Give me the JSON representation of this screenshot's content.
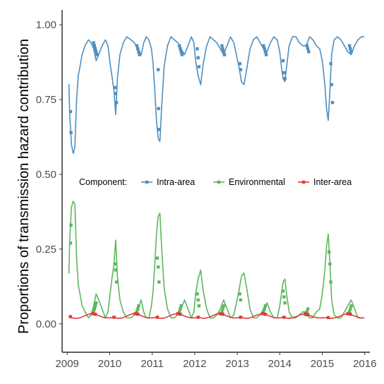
{
  "chart_data": {
    "type": "line",
    "title": "",
    "xlabel": "",
    "ylabel": "Proportions of transmission hazard contribution",
    "xlim": [
      2008.88,
      2016.12
    ],
    "ylim": [
      -0.095,
      1.05
    ],
    "x_ticks": [
      2009,
      2010,
      2011,
      2012,
      2013,
      2014,
      2015,
      2016
    ],
    "x_tick_labels": [
      "2009",
      "2010",
      "2011",
      "2012",
      "2013",
      "2014",
      "2015",
      "2016"
    ],
    "y_ticks": [
      0,
      0.25,
      0.5,
      0.75,
      1.0
    ],
    "y_tick_labels": [
      "0.00",
      "0.25",
      "0.50",
      "0.75",
      "1.00"
    ],
    "grid": false,
    "legend": {
      "title": "Component:",
      "placement": "inside-middle"
    },
    "series": [
      {
        "name": "Intra-area",
        "color": "#4f8fc0",
        "x": [
          2009.04,
          2009.06,
          2009.1,
          2009.14,
          2009.18,
          2009.22,
          2009.26,
          2009.3,
          2009.35,
          2009.42,
          2009.5,
          2009.56,
          2009.62,
          2009.68,
          2009.74,
          2009.82,
          2009.9,
          2009.96,
          2010.0,
          2010.05,
          2010.1,
          2010.14,
          2010.18,
          2010.24,
          2010.32,
          2010.4,
          2010.5,
          2010.58,
          2010.66,
          2010.74,
          2010.8,
          2010.86,
          2010.92,
          2010.98,
          2011.02,
          2011.06,
          2011.1,
          2011.14,
          2011.18,
          2011.22,
          2011.28,
          2011.36,
          2011.44,
          2011.52,
          2011.6,
          2011.68,
          2011.76,
          2011.84,
          2011.92,
          2011.98,
          2012.02,
          2012.08,
          2012.14,
          2012.2,
          2012.28,
          2012.36,
          2012.44,
          2012.52,
          2012.6,
          2012.68,
          2012.76,
          2012.84,
          2012.92,
          2012.98,
          2013.04,
          2013.1,
          2013.16,
          2013.22,
          2013.3,
          2013.38,
          2013.46,
          2013.54,
          2013.62,
          2013.7,
          2013.78,
          2013.86,
          2013.94,
          2014.0,
          2014.04,
          2014.08,
          2014.12,
          2014.16,
          2014.22,
          2014.3,
          2014.38,
          2014.46,
          2014.54,
          2014.62,
          2014.7,
          2014.78,
          2014.86,
          2014.94,
          2015.0,
          2015.06,
          2015.1,
          2015.14,
          2015.18,
          2015.22,
          2015.28,
          2015.36,
          2015.44,
          2015.52,
          2015.6,
          2015.68,
          2015.76,
          2015.84,
          2015.92,
          2015.98
        ],
        "y": [
          0.8,
          0.7,
          0.6,
          0.57,
          0.59,
          0.75,
          0.83,
          0.86,
          0.9,
          0.93,
          0.95,
          0.94,
          0.92,
          0.88,
          0.9,
          0.93,
          0.95,
          0.93,
          0.88,
          0.83,
          0.78,
          0.7,
          0.82,
          0.9,
          0.94,
          0.96,
          0.95,
          0.94,
          0.92,
          0.9,
          0.94,
          0.96,
          0.95,
          0.92,
          0.87,
          0.78,
          0.68,
          0.62,
          0.61,
          0.72,
          0.86,
          0.93,
          0.96,
          0.95,
          0.94,
          0.92,
          0.9,
          0.93,
          0.96,
          0.94,
          0.88,
          0.83,
          0.8,
          0.87,
          0.93,
          0.96,
          0.95,
          0.94,
          0.92,
          0.9,
          0.93,
          0.96,
          0.94,
          0.9,
          0.86,
          0.81,
          0.8,
          0.85,
          0.92,
          0.95,
          0.96,
          0.94,
          0.92,
          0.91,
          0.94,
          0.96,
          0.95,
          0.91,
          0.86,
          0.82,
          0.81,
          0.86,
          0.93,
          0.96,
          0.96,
          0.94,
          0.93,
          0.93,
          0.96,
          0.95,
          0.93,
          0.92,
          0.88,
          0.8,
          0.72,
          0.68,
          0.78,
          0.9,
          0.95,
          0.96,
          0.95,
          0.93,
          0.91,
          0.9,
          0.93,
          0.95,
          0.96,
          0.96
        ],
        "markers_x": [
          2009.08,
          2009.09,
          2009.62,
          2009.64,
          2009.66,
          2009.68,
          2009.7,
          2010.12,
          2010.14,
          2010.16,
          2010.64,
          2010.66,
          2010.68,
          2010.7,
          2011.14,
          2011.15,
          2011.16,
          2011.64,
          2011.66,
          2011.68,
          2011.7,
          2012.06,
          2012.08,
          2012.1,
          2012.64,
          2012.66,
          2012.68,
          2012.7,
          2013.06,
          2013.08,
          2013.62,
          2013.64,
          2013.66,
          2013.68,
          2014.08,
          2014.1,
          2014.12,
          2014.64,
          2014.66,
          2014.68,
          2015.2,
          2015.22,
          2015.24,
          2015.64,
          2015.66,
          2015.68
        ],
        "markers_y": [
          0.71,
          0.64,
          0.94,
          0.93,
          0.92,
          0.91,
          0.9,
          0.79,
          0.77,
          0.74,
          0.93,
          0.92,
          0.91,
          0.9,
          0.85,
          0.72,
          0.65,
          0.93,
          0.92,
          0.91,
          0.9,
          0.92,
          0.89,
          0.86,
          0.93,
          0.92,
          0.91,
          0.9,
          0.87,
          0.85,
          0.93,
          0.92,
          0.91,
          0.9,
          0.88,
          0.84,
          0.82,
          0.93,
          0.92,
          0.91,
          0.87,
          0.8,
          0.74,
          0.93,
          0.92,
          0.91
        ]
      },
      {
        "name": "Environmental",
        "color": "#5cb85c",
        "x": [
          2009.04,
          2009.06,
          2009.1,
          2009.14,
          2009.18,
          2009.22,
          2009.26,
          2009.3,
          2009.35,
          2009.42,
          2009.5,
          2009.56,
          2009.62,
          2009.68,
          2009.74,
          2009.82,
          2009.9,
          2009.96,
          2010.0,
          2010.05,
          2010.1,
          2010.14,
          2010.18,
          2010.24,
          2010.32,
          2010.4,
          2010.5,
          2010.58,
          2010.66,
          2010.74,
          2010.8,
          2010.86,
          2010.92,
          2010.98,
          2011.02,
          2011.06,
          2011.1,
          2011.14,
          2011.18,
          2011.22,
          2011.28,
          2011.36,
          2011.44,
          2011.52,
          2011.6,
          2011.68,
          2011.76,
          2011.84,
          2011.92,
          2011.98,
          2012.02,
          2012.08,
          2012.14,
          2012.2,
          2012.28,
          2012.36,
          2012.44,
          2012.52,
          2012.6,
          2012.68,
          2012.76,
          2012.84,
          2012.92,
          2012.98,
          2013.04,
          2013.1,
          2013.16,
          2013.22,
          2013.3,
          2013.38,
          2013.46,
          2013.54,
          2013.62,
          2013.7,
          2013.78,
          2013.86,
          2013.94,
          2014.0,
          2014.04,
          2014.08,
          2014.12,
          2014.16,
          2014.22,
          2014.3,
          2014.38,
          2014.46,
          2014.54,
          2014.62,
          2014.7,
          2014.78,
          2014.86,
          2014.94,
          2015.0,
          2015.06,
          2015.1,
          2015.14,
          2015.18,
          2015.22,
          2015.28,
          2015.36,
          2015.44,
          2015.52,
          2015.6,
          2015.68,
          2015.76,
          2015.84,
          2015.92,
          2015.98
        ],
        "y": [
          0.17,
          0.28,
          0.39,
          0.41,
          0.4,
          0.22,
          0.13,
          0.1,
          0.06,
          0.04,
          0.02,
          0.03,
          0.06,
          0.1,
          0.08,
          0.05,
          0.02,
          0.04,
          0.09,
          0.15,
          0.2,
          0.28,
          0.16,
          0.08,
          0.04,
          0.02,
          0.02,
          0.03,
          0.05,
          0.08,
          0.04,
          0.02,
          0.02,
          0.06,
          0.11,
          0.2,
          0.3,
          0.36,
          0.37,
          0.26,
          0.12,
          0.05,
          0.02,
          0.02,
          0.03,
          0.05,
          0.08,
          0.05,
          0.02,
          0.04,
          0.1,
          0.15,
          0.18,
          0.11,
          0.05,
          0.02,
          0.02,
          0.03,
          0.05,
          0.08,
          0.05,
          0.02,
          0.03,
          0.07,
          0.11,
          0.16,
          0.17,
          0.12,
          0.05,
          0.02,
          0.02,
          0.03,
          0.05,
          0.07,
          0.04,
          0.02,
          0.02,
          0.06,
          0.1,
          0.14,
          0.15,
          0.1,
          0.04,
          0.02,
          0.02,
          0.03,
          0.04,
          0.04,
          0.02,
          0.02,
          0.04,
          0.05,
          0.1,
          0.18,
          0.26,
          0.3,
          0.2,
          0.08,
          0.03,
          0.02,
          0.02,
          0.04,
          0.06,
          0.08,
          0.05,
          0.02,
          0.02,
          0.02
        ],
        "markers_x": [
          2009.08,
          2009.09,
          2009.62,
          2009.64,
          2009.66,
          2009.68,
          2010.12,
          2010.14,
          2010.16,
          2010.64,
          2010.66,
          2010.68,
          2011.12,
          2011.14,
          2011.16,
          2011.64,
          2011.66,
          2011.68,
          2012.06,
          2012.08,
          2012.1,
          2012.64,
          2012.66,
          2012.68,
          2013.06,
          2013.08,
          2013.62,
          2013.64,
          2013.66,
          2014.08,
          2014.1,
          2014.12,
          2014.62,
          2014.64,
          2014.66,
          2015.16,
          2015.18,
          2015.2,
          2015.64,
          2015.66,
          2015.68
        ],
        "markers_y": [
          0.27,
          0.33,
          0.04,
          0.05,
          0.06,
          0.07,
          0.2,
          0.18,
          0.14,
          0.04,
          0.05,
          0.06,
          0.22,
          0.19,
          0.14,
          0.04,
          0.05,
          0.06,
          0.1,
          0.08,
          0.06,
          0.04,
          0.05,
          0.06,
          0.1,
          0.08,
          0.04,
          0.05,
          0.06,
          0.11,
          0.09,
          0.07,
          0.03,
          0.04,
          0.05,
          0.24,
          0.2,
          0.14,
          0.04,
          0.05,
          0.06
        ]
      },
      {
        "name": "Inter-area",
        "color": "#e03a3a",
        "x": [
          2009.04,
          2009.1,
          2009.2,
          2009.3,
          2009.4,
          2009.5,
          2009.6,
          2009.7,
          2009.8,
          2009.9,
          2010.0,
          2010.1,
          2010.2,
          2010.3,
          2010.4,
          2010.5,
          2010.6,
          2010.7,
          2010.8,
          2010.9,
          2011.0,
          2011.1,
          2011.2,
          2011.3,
          2011.4,
          2011.5,
          2011.6,
          2011.7,
          2011.8,
          2011.9,
          2012.0,
          2012.1,
          2012.2,
          2012.3,
          2012.4,
          2012.5,
          2012.6,
          2012.7,
          2012.8,
          2012.9,
          2013.0,
          2013.1,
          2013.2,
          2013.3,
          2013.4,
          2013.5,
          2013.6,
          2013.7,
          2013.8,
          2013.9,
          2014.0,
          2014.1,
          2014.2,
          2014.3,
          2014.4,
          2014.5,
          2014.6,
          2014.7,
          2014.8,
          2014.9,
          2015.0,
          2015.1,
          2015.2,
          2015.3,
          2015.4,
          2015.5,
          2015.6,
          2015.7,
          2015.8,
          2015.9,
          2015.98
        ],
        "y": [
          0.025,
          0.02,
          0.018,
          0.02,
          0.026,
          0.032,
          0.035,
          0.03,
          0.024,
          0.02,
          0.02,
          0.022,
          0.018,
          0.02,
          0.026,
          0.032,
          0.035,
          0.03,
          0.024,
          0.02,
          0.02,
          0.022,
          0.018,
          0.02,
          0.026,
          0.032,
          0.034,
          0.03,
          0.024,
          0.02,
          0.02,
          0.022,
          0.018,
          0.02,
          0.026,
          0.032,
          0.034,
          0.03,
          0.024,
          0.02,
          0.02,
          0.022,
          0.018,
          0.02,
          0.026,
          0.031,
          0.034,
          0.03,
          0.024,
          0.02,
          0.02,
          0.022,
          0.018,
          0.02,
          0.025,
          0.031,
          0.033,
          0.028,
          0.023,
          0.02,
          0.02,
          0.021,
          0.018,
          0.02,
          0.025,
          0.031,
          0.034,
          0.03,
          0.024,
          0.02,
          0.02
        ],
        "markers_x": [
          2009.08,
          2009.6,
          2009.66,
          2010.1,
          2010.6,
          2010.66,
          2011.12,
          2011.6,
          2011.66,
          2012.08,
          2012.6,
          2012.66,
          2013.08,
          2013.6,
          2013.66,
          2014.1,
          2014.6,
          2014.66,
          2015.14,
          2015.6,
          2015.66
        ],
        "markers_y": [
          0.024,
          0.034,
          0.032,
          0.022,
          0.034,
          0.032,
          0.022,
          0.034,
          0.032,
          0.022,
          0.034,
          0.032,
          0.022,
          0.034,
          0.032,
          0.022,
          0.033,
          0.031,
          0.021,
          0.034,
          0.032
        ]
      }
    ]
  }
}
